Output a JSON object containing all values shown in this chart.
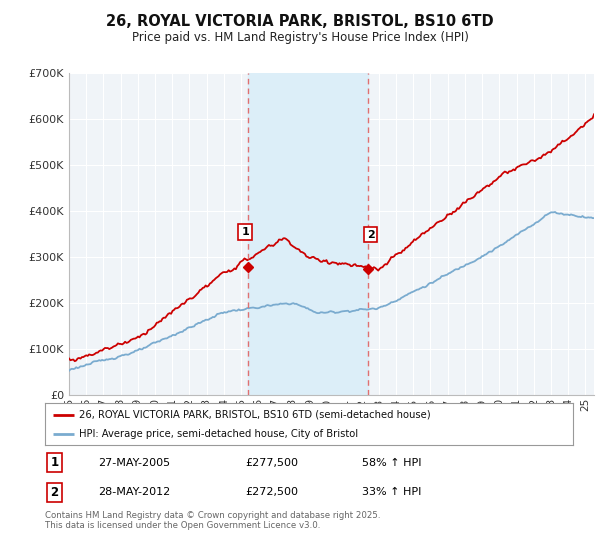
{
  "title": "26, ROYAL VICTORIA PARK, BRISTOL, BS10 6TD",
  "subtitle": "Price paid vs. HM Land Registry's House Price Index (HPI)",
  "ylim": [
    0,
    700000
  ],
  "yticks": [
    0,
    100000,
    200000,
    300000,
    400000,
    500000,
    600000,
    700000
  ],
  "ytick_labels": [
    "£0",
    "£100K",
    "£200K",
    "£300K",
    "£400K",
    "£500K",
    "£600K",
    "£700K"
  ],
  "xlim_start": 1995.0,
  "xlim_end": 2025.5,
  "sale1_x": 2005.38,
  "sale1_y": 277500,
  "sale2_x": 2012.38,
  "sale2_y": 272500,
  "sale1_date": "27-MAY-2005",
  "sale1_price": "£277,500",
  "sale1_pct": "58% ↑ HPI",
  "sale2_date": "28-MAY-2012",
  "sale2_price": "£272,500",
  "sale2_pct": "33% ↑ HPI",
  "red_color": "#cc0000",
  "blue_color": "#7aabcf",
  "shade_color": "#dceef8",
  "vline_color": "#e07070",
  "legend_line1": "26, ROYAL VICTORIA PARK, BRISTOL, BS10 6TD (semi-detached house)",
  "legend_line2": "HPI: Average price, semi-detached house, City of Bristol",
  "footnote": "Contains HM Land Registry data © Crown copyright and database right 2025.\nThis data is licensed under the Open Government Licence v3.0.",
  "background_color": "#ffffff",
  "plot_bg_color": "#f0f4f8"
}
